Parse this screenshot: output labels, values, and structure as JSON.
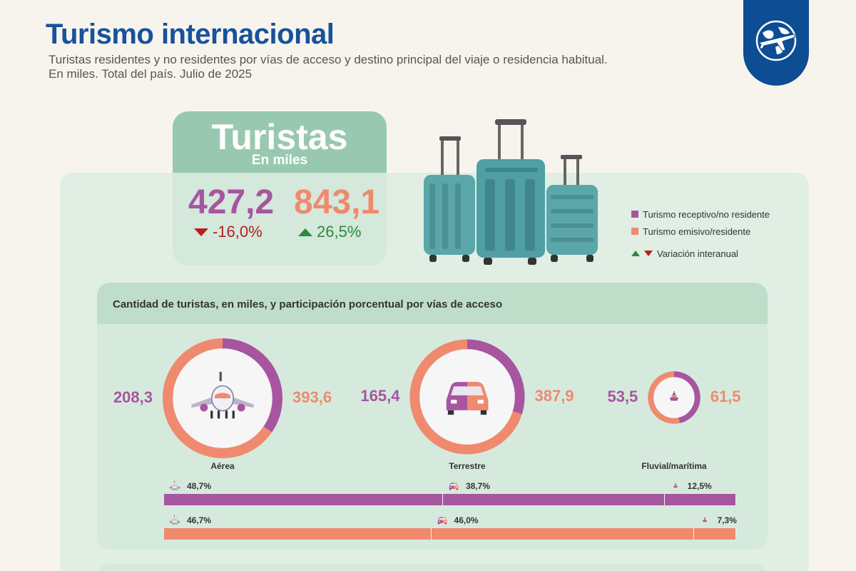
{
  "header": {
    "title": "Turismo internacional",
    "subtitle_line1": "Turistas residentes y no residentes por vías de acceso y destino principal del viaje o residencia habitual.",
    "subtitle_line2": "En miles. Total del país. Julio de 2025"
  },
  "colors": {
    "receptivo": "#a855a0",
    "emisivo": "#ef8a6e",
    "up": "#2b8a3e",
    "down": "#b52121",
    "brand": "#17529b"
  },
  "summary": {
    "card_title": "Turistas",
    "card_sub": "En miles",
    "receptivo_value": "427,2",
    "receptivo_var": "-16,0%",
    "emisivo_value": "843,1",
    "emisivo_var": "26,5%"
  },
  "legend": {
    "receptivo": "Turismo receptivo/no residente",
    "emisivo": "Turismo emisivo/residente",
    "variacion": "Variación interanual"
  },
  "access": {
    "title": "Cantidad de turistas, en miles, y participación porcentual por vías de acceso"
  },
  "chart_data": [
    {
      "type": "pie",
      "categories": [
        "Aérea",
        "Terrestre",
        "Fluvial/marítima"
      ],
      "series": [
        {
          "name": "Turismo receptivo/no residente",
          "values": [
            208.3,
            165.4,
            53.5
          ],
          "labels": [
            "208,3",
            "165,4",
            "53,5"
          ]
        },
        {
          "name": "Turismo emisivo/residente",
          "values": [
            393.6,
            387.9,
            61.5
          ],
          "labels": [
            "393,6",
            "387,9",
            "61,5"
          ]
        }
      ]
    },
    {
      "type": "bar",
      "categories": [
        "Aérea",
        "Terrestre",
        "Fluvial/marítima"
      ],
      "series": [
        {
          "name": "Turismo receptivo/no residente",
          "values": [
            48.7,
            38.7,
            12.5
          ],
          "labels": [
            "48,7%",
            "38,7%",
            "12,5%"
          ]
        },
        {
          "name": "Turismo emisivo/residente",
          "values": [
            46.7,
            46.0,
            7.3
          ],
          "labels": [
            "46,7%",
            "46,0%",
            "7,3%"
          ]
        }
      ]
    }
  ]
}
